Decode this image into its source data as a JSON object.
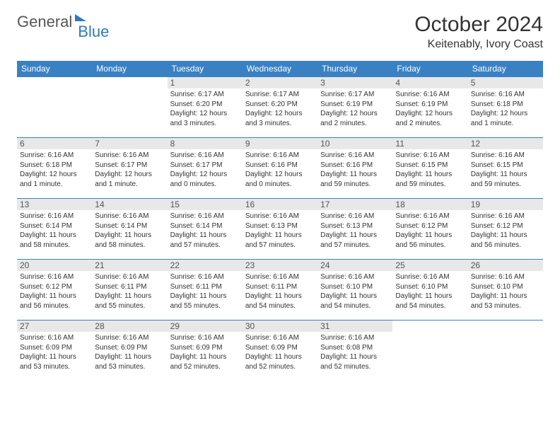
{
  "brand": {
    "part1": "General",
    "part2": "Blue"
  },
  "title": "October 2024",
  "location": "Keitenably, Ivory Coast",
  "colors": {
    "header_bg": "#3a81c4",
    "header_fg": "#ffffff",
    "daynum_bg": "#e8e8e8",
    "row_border": "#3a81c4",
    "logo_accent": "#2f7ac0"
  },
  "weekdays": [
    "Sunday",
    "Monday",
    "Tuesday",
    "Wednesday",
    "Thursday",
    "Friday",
    "Saturday"
  ],
  "weeks": [
    [
      null,
      null,
      {
        "n": "1",
        "sunrise": "Sunrise: 6:17 AM",
        "sunset": "Sunset: 6:20 PM",
        "daylight": "Daylight: 12 hours and 3 minutes."
      },
      {
        "n": "2",
        "sunrise": "Sunrise: 6:17 AM",
        "sunset": "Sunset: 6:20 PM",
        "daylight": "Daylight: 12 hours and 3 minutes."
      },
      {
        "n": "3",
        "sunrise": "Sunrise: 6:17 AM",
        "sunset": "Sunset: 6:19 PM",
        "daylight": "Daylight: 12 hours and 2 minutes."
      },
      {
        "n": "4",
        "sunrise": "Sunrise: 6:16 AM",
        "sunset": "Sunset: 6:19 PM",
        "daylight": "Daylight: 12 hours and 2 minutes."
      },
      {
        "n": "5",
        "sunrise": "Sunrise: 6:16 AM",
        "sunset": "Sunset: 6:18 PM",
        "daylight": "Daylight: 12 hours and 1 minute."
      }
    ],
    [
      {
        "n": "6",
        "sunrise": "Sunrise: 6:16 AM",
        "sunset": "Sunset: 6:18 PM",
        "daylight": "Daylight: 12 hours and 1 minute."
      },
      {
        "n": "7",
        "sunrise": "Sunrise: 6:16 AM",
        "sunset": "Sunset: 6:17 PM",
        "daylight": "Daylight: 12 hours and 1 minute."
      },
      {
        "n": "8",
        "sunrise": "Sunrise: 6:16 AM",
        "sunset": "Sunset: 6:17 PM",
        "daylight": "Daylight: 12 hours and 0 minutes."
      },
      {
        "n": "9",
        "sunrise": "Sunrise: 6:16 AM",
        "sunset": "Sunset: 6:16 PM",
        "daylight": "Daylight: 12 hours and 0 minutes."
      },
      {
        "n": "10",
        "sunrise": "Sunrise: 6:16 AM",
        "sunset": "Sunset: 6:16 PM",
        "daylight": "Daylight: 11 hours and 59 minutes."
      },
      {
        "n": "11",
        "sunrise": "Sunrise: 6:16 AM",
        "sunset": "Sunset: 6:15 PM",
        "daylight": "Daylight: 11 hours and 59 minutes."
      },
      {
        "n": "12",
        "sunrise": "Sunrise: 6:16 AM",
        "sunset": "Sunset: 6:15 PM",
        "daylight": "Daylight: 11 hours and 59 minutes."
      }
    ],
    [
      {
        "n": "13",
        "sunrise": "Sunrise: 6:16 AM",
        "sunset": "Sunset: 6:14 PM",
        "daylight": "Daylight: 11 hours and 58 minutes."
      },
      {
        "n": "14",
        "sunrise": "Sunrise: 6:16 AM",
        "sunset": "Sunset: 6:14 PM",
        "daylight": "Daylight: 11 hours and 58 minutes."
      },
      {
        "n": "15",
        "sunrise": "Sunrise: 6:16 AM",
        "sunset": "Sunset: 6:14 PM",
        "daylight": "Daylight: 11 hours and 57 minutes."
      },
      {
        "n": "16",
        "sunrise": "Sunrise: 6:16 AM",
        "sunset": "Sunset: 6:13 PM",
        "daylight": "Daylight: 11 hours and 57 minutes."
      },
      {
        "n": "17",
        "sunrise": "Sunrise: 6:16 AM",
        "sunset": "Sunset: 6:13 PM",
        "daylight": "Daylight: 11 hours and 57 minutes."
      },
      {
        "n": "18",
        "sunrise": "Sunrise: 6:16 AM",
        "sunset": "Sunset: 6:12 PM",
        "daylight": "Daylight: 11 hours and 56 minutes."
      },
      {
        "n": "19",
        "sunrise": "Sunrise: 6:16 AM",
        "sunset": "Sunset: 6:12 PM",
        "daylight": "Daylight: 11 hours and 56 minutes."
      }
    ],
    [
      {
        "n": "20",
        "sunrise": "Sunrise: 6:16 AM",
        "sunset": "Sunset: 6:12 PM",
        "daylight": "Daylight: 11 hours and 56 minutes."
      },
      {
        "n": "21",
        "sunrise": "Sunrise: 6:16 AM",
        "sunset": "Sunset: 6:11 PM",
        "daylight": "Daylight: 11 hours and 55 minutes."
      },
      {
        "n": "22",
        "sunrise": "Sunrise: 6:16 AM",
        "sunset": "Sunset: 6:11 PM",
        "daylight": "Daylight: 11 hours and 55 minutes."
      },
      {
        "n": "23",
        "sunrise": "Sunrise: 6:16 AM",
        "sunset": "Sunset: 6:11 PM",
        "daylight": "Daylight: 11 hours and 54 minutes."
      },
      {
        "n": "24",
        "sunrise": "Sunrise: 6:16 AM",
        "sunset": "Sunset: 6:10 PM",
        "daylight": "Daylight: 11 hours and 54 minutes."
      },
      {
        "n": "25",
        "sunrise": "Sunrise: 6:16 AM",
        "sunset": "Sunset: 6:10 PM",
        "daylight": "Daylight: 11 hours and 54 minutes."
      },
      {
        "n": "26",
        "sunrise": "Sunrise: 6:16 AM",
        "sunset": "Sunset: 6:10 PM",
        "daylight": "Daylight: 11 hours and 53 minutes."
      }
    ],
    [
      {
        "n": "27",
        "sunrise": "Sunrise: 6:16 AM",
        "sunset": "Sunset: 6:09 PM",
        "daylight": "Daylight: 11 hours and 53 minutes."
      },
      {
        "n": "28",
        "sunrise": "Sunrise: 6:16 AM",
        "sunset": "Sunset: 6:09 PM",
        "daylight": "Daylight: 11 hours and 53 minutes."
      },
      {
        "n": "29",
        "sunrise": "Sunrise: 6:16 AM",
        "sunset": "Sunset: 6:09 PM",
        "daylight": "Daylight: 11 hours and 52 minutes."
      },
      {
        "n": "30",
        "sunrise": "Sunrise: 6:16 AM",
        "sunset": "Sunset: 6:09 PM",
        "daylight": "Daylight: 11 hours and 52 minutes."
      },
      {
        "n": "31",
        "sunrise": "Sunrise: 6:16 AM",
        "sunset": "Sunset: 6:08 PM",
        "daylight": "Daylight: 11 hours and 52 minutes."
      },
      null,
      null
    ]
  ]
}
